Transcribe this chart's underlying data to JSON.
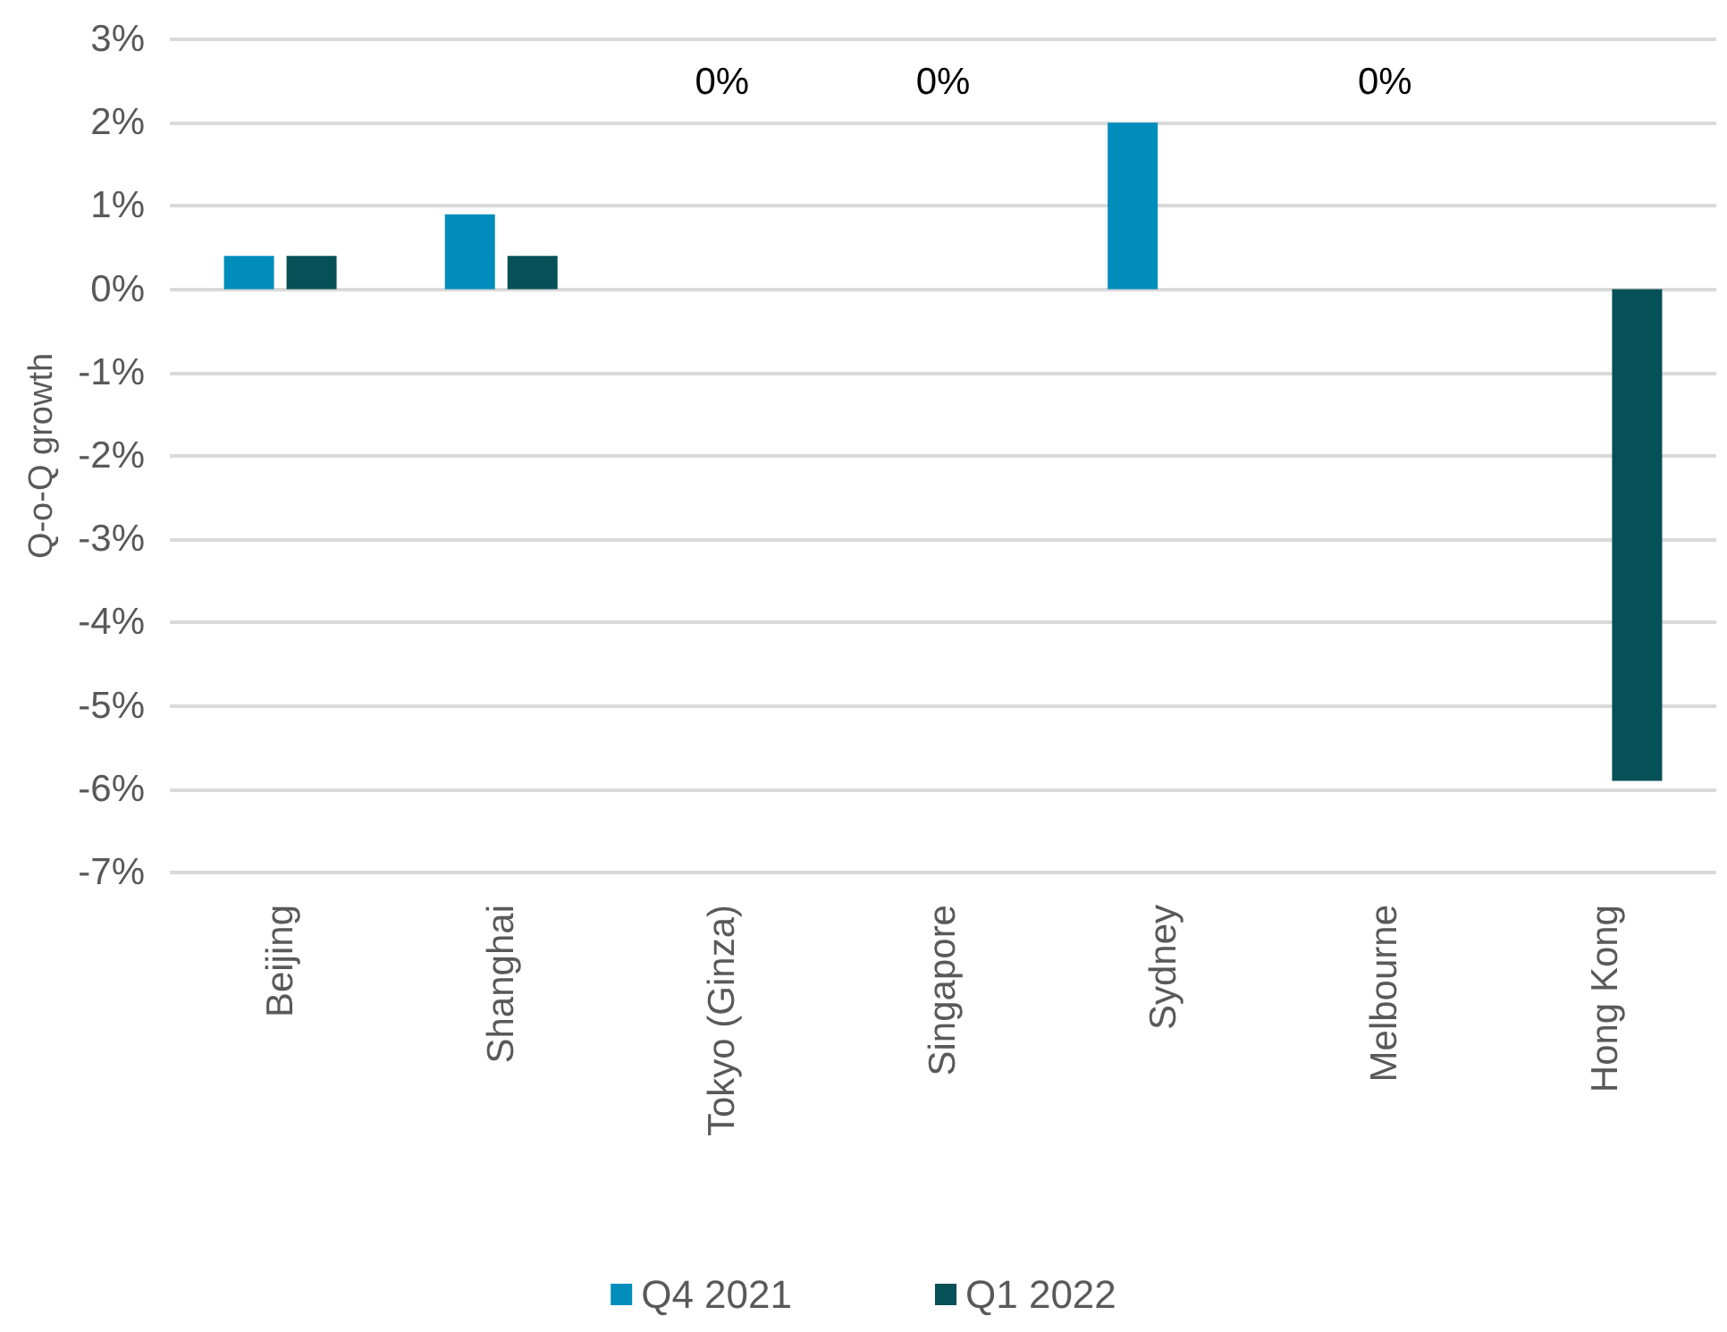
{
  "chart_data": {
    "type": "bar",
    "ylabel": "Q-o-Q growth",
    "categories": [
      "Beijing",
      "Shanghai",
      "Tokyo (Ginza)",
      "Singapore",
      "Sydney",
      "Melbourne",
      "Hong Kong"
    ],
    "series": [
      {
        "name": "Q4 2021",
        "color": "#008dbc",
        "values": [
          0.4,
          0.9,
          0,
          0,
          2.0,
          0,
          0
        ]
      },
      {
        "name": "Q1 2022",
        "color": "#065057",
        "values": [
          0.4,
          0.4,
          0,
          0,
          0,
          0,
          -5.9
        ]
      }
    ],
    "ylim": [
      -7,
      3
    ],
    "yticks": [
      {
        "value": -7,
        "label": "-7%"
      },
      {
        "value": -6,
        "label": "-6%"
      },
      {
        "value": -5,
        "label": "-5%"
      },
      {
        "value": -4,
        "label": "-4%"
      },
      {
        "value": -3,
        "label": "-3%"
      },
      {
        "value": -2,
        "label": "-2%"
      },
      {
        "value": -1,
        "label": "-1%"
      },
      {
        "value": 0,
        "label": "0%"
      },
      {
        "value": 1,
        "label": "1%"
      },
      {
        "value": 2,
        "label": "2%"
      },
      {
        "value": 3,
        "label": "3%"
      }
    ],
    "annotations": [
      "0%",
      "0%",
      "0%"
    ],
    "grid": "y",
    "legend": "bottom"
  }
}
